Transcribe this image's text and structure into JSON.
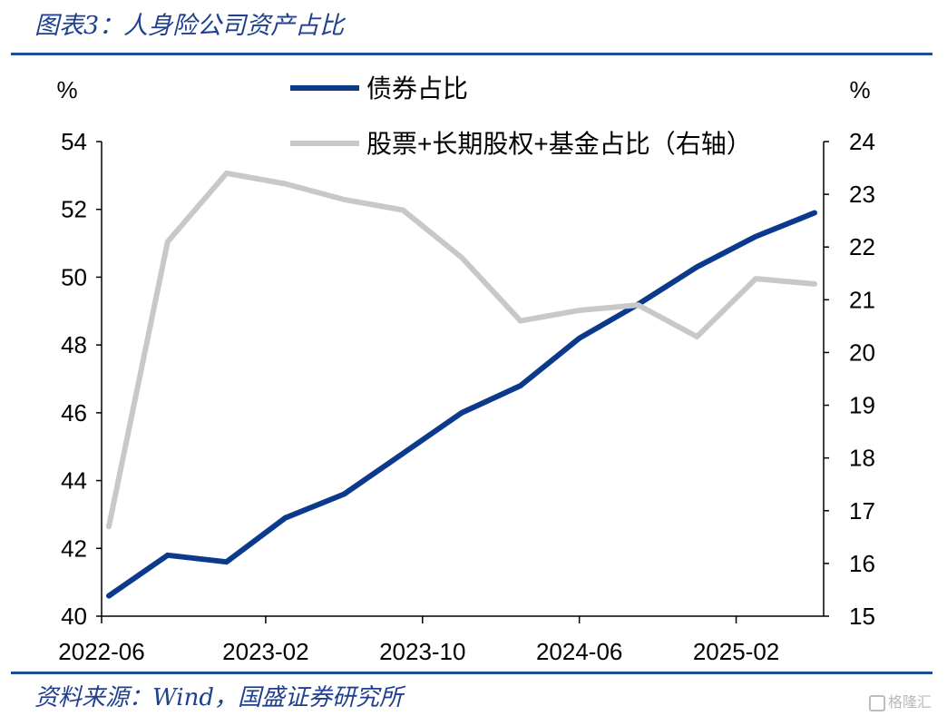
{
  "title": "图表3：人身险公司资产占比",
  "source": "资料来源：Wind，国盛证券研究所",
  "watermark": "格隆汇",
  "chart_data": {
    "type": "line",
    "left_unit": "%",
    "right_unit": "%",
    "x": [
      "2022-06",
      "2022-09",
      "2022-12",
      "2023-03",
      "2023-06",
      "2023-09",
      "2023-12",
      "2024-03",
      "2024-06",
      "2024-09",
      "2024-12",
      "2025-03",
      "2025-06"
    ],
    "x_tick_labels": [
      "2022-06",
      "2023-02",
      "2023-10",
      "2024-06",
      "2025-02"
    ],
    "y_left_ticks": [
      "40",
      "42",
      "44",
      "46",
      "48",
      "50",
      "52",
      "54"
    ],
    "y_right_ticks": [
      "15",
      "16",
      "17",
      "18",
      "19",
      "20",
      "21",
      "22",
      "23",
      "24"
    ],
    "ylim_left": [
      40,
      54
    ],
    "ylim_right": [
      15,
      24
    ],
    "legend_position": "top-center",
    "series": [
      {
        "name": "债券占比",
        "axis": "left",
        "color": "#0b3a8c",
        "values": [
          40.6,
          41.8,
          41.6,
          42.9,
          43.6,
          44.8,
          46.0,
          46.8,
          48.2,
          49.2,
          50.3,
          51.2,
          51.9
        ]
      },
      {
        "name": "股票+长期股权+基金占比（右轴）",
        "axis": "right",
        "color": "#c8c8c8",
        "values": [
          16.7,
          22.1,
          23.4,
          23.2,
          22.9,
          22.7,
          21.8,
          20.6,
          20.8,
          20.9,
          20.3,
          21.4,
          21.3
        ]
      }
    ]
  }
}
